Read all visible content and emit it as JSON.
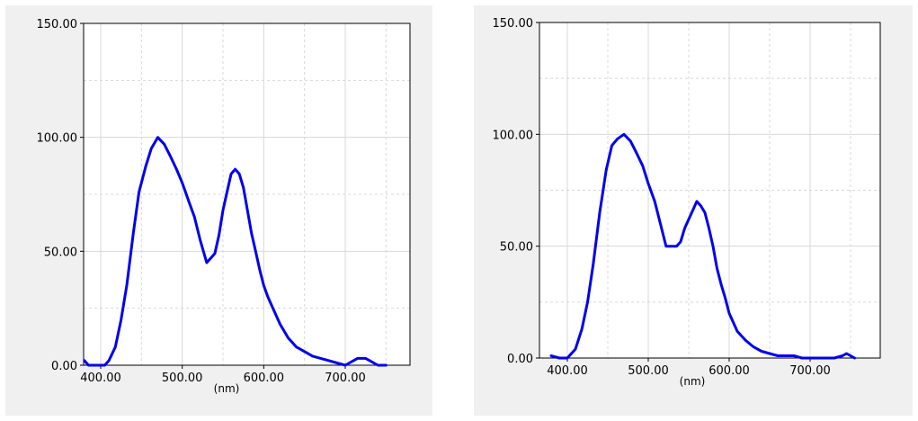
{
  "chart_data": [
    {
      "type": "line",
      "xlabel": "(nm)",
      "ylabel": "",
      "xlim": [
        380,
        760
      ],
      "ylim": [
        0,
        150
      ],
      "x_ticks": [
        "400.00",
        "500.00",
        "600.00",
        "700.00"
      ],
      "y_ticks": [
        "0.00",
        "50.00",
        "100.00",
        "150.00"
      ],
      "grid": true,
      "series": [
        {
          "color": "#0000ee",
          "x": [
            380,
            385,
            390,
            400,
            405,
            410,
            418,
            425,
            432,
            440,
            447,
            455,
            462,
            470,
            478,
            485,
            493,
            500,
            508,
            515,
            522,
            530,
            540,
            545,
            550,
            555,
            560,
            565,
            570,
            575,
            580,
            585,
            590,
            595,
            600,
            605,
            610,
            620,
            630,
            640,
            650,
            660,
            670,
            680,
            690,
            700,
            705,
            710,
            715,
            720,
            725,
            730,
            740,
            750
          ],
          "y": [
            2,
            0,
            0,
            0,
            0,
            2,
            8,
            20,
            35,
            58,
            76,
            87,
            95,
            100,
            97,
            92,
            86,
            80,
            72,
            65,
            55,
            45,
            49,
            57,
            68,
            76,
            84,
            86,
            84,
            78,
            68,
            58,
            50,
            42,
            35,
            30,
            26,
            18,
            12,
            8,
            6,
            4,
            3,
            2,
            1,
            0,
            1,
            2,
            3,
            3,
            3,
            2,
            0,
            0
          ]
        }
      ]
    },
    {
      "type": "line",
      "xlabel": "(nm)",
      "ylabel": "",
      "xlim": [
        380,
        770
      ],
      "ylim": [
        0,
        150
      ],
      "x_ticks": [
        "400.00",
        "500.00",
        "600.00",
        "700.00"
      ],
      "y_ticks": [
        "0.00",
        "50.00",
        "100.00",
        "150.00"
      ],
      "grid": true,
      "series": [
        {
          "color": "#0000ee",
          "x": [
            380,
            390,
            400,
            410,
            418,
            425,
            432,
            440,
            448,
            455,
            462,
            470,
            478,
            485,
            493,
            500,
            508,
            515,
            522,
            530,
            535,
            540,
            545,
            550,
            555,
            560,
            565,
            570,
            575,
            580,
            585,
            590,
            595,
            600,
            605,
            610,
            620,
            630,
            640,
            650,
            660,
            670,
            680,
            690,
            700,
            710,
            720,
            730,
            740,
            745,
            750,
            755
          ],
          "y": [
            1,
            0,
            0,
            4,
            13,
            25,
            42,
            65,
            84,
            95,
            98,
            100,
            97,
            92,
            86,
            78,
            70,
            60,
            50,
            50,
            50,
            52,
            58,
            62,
            66,
            70,
            68,
            65,
            58,
            50,
            40,
            33,
            27,
            20,
            16,
            12,
            8,
            5,
            3,
            2,
            1,
            1,
            1,
            0,
            0,
            0,
            0,
            0,
            1,
            2,
            1,
            0
          ]
        }
      ]
    }
  ]
}
